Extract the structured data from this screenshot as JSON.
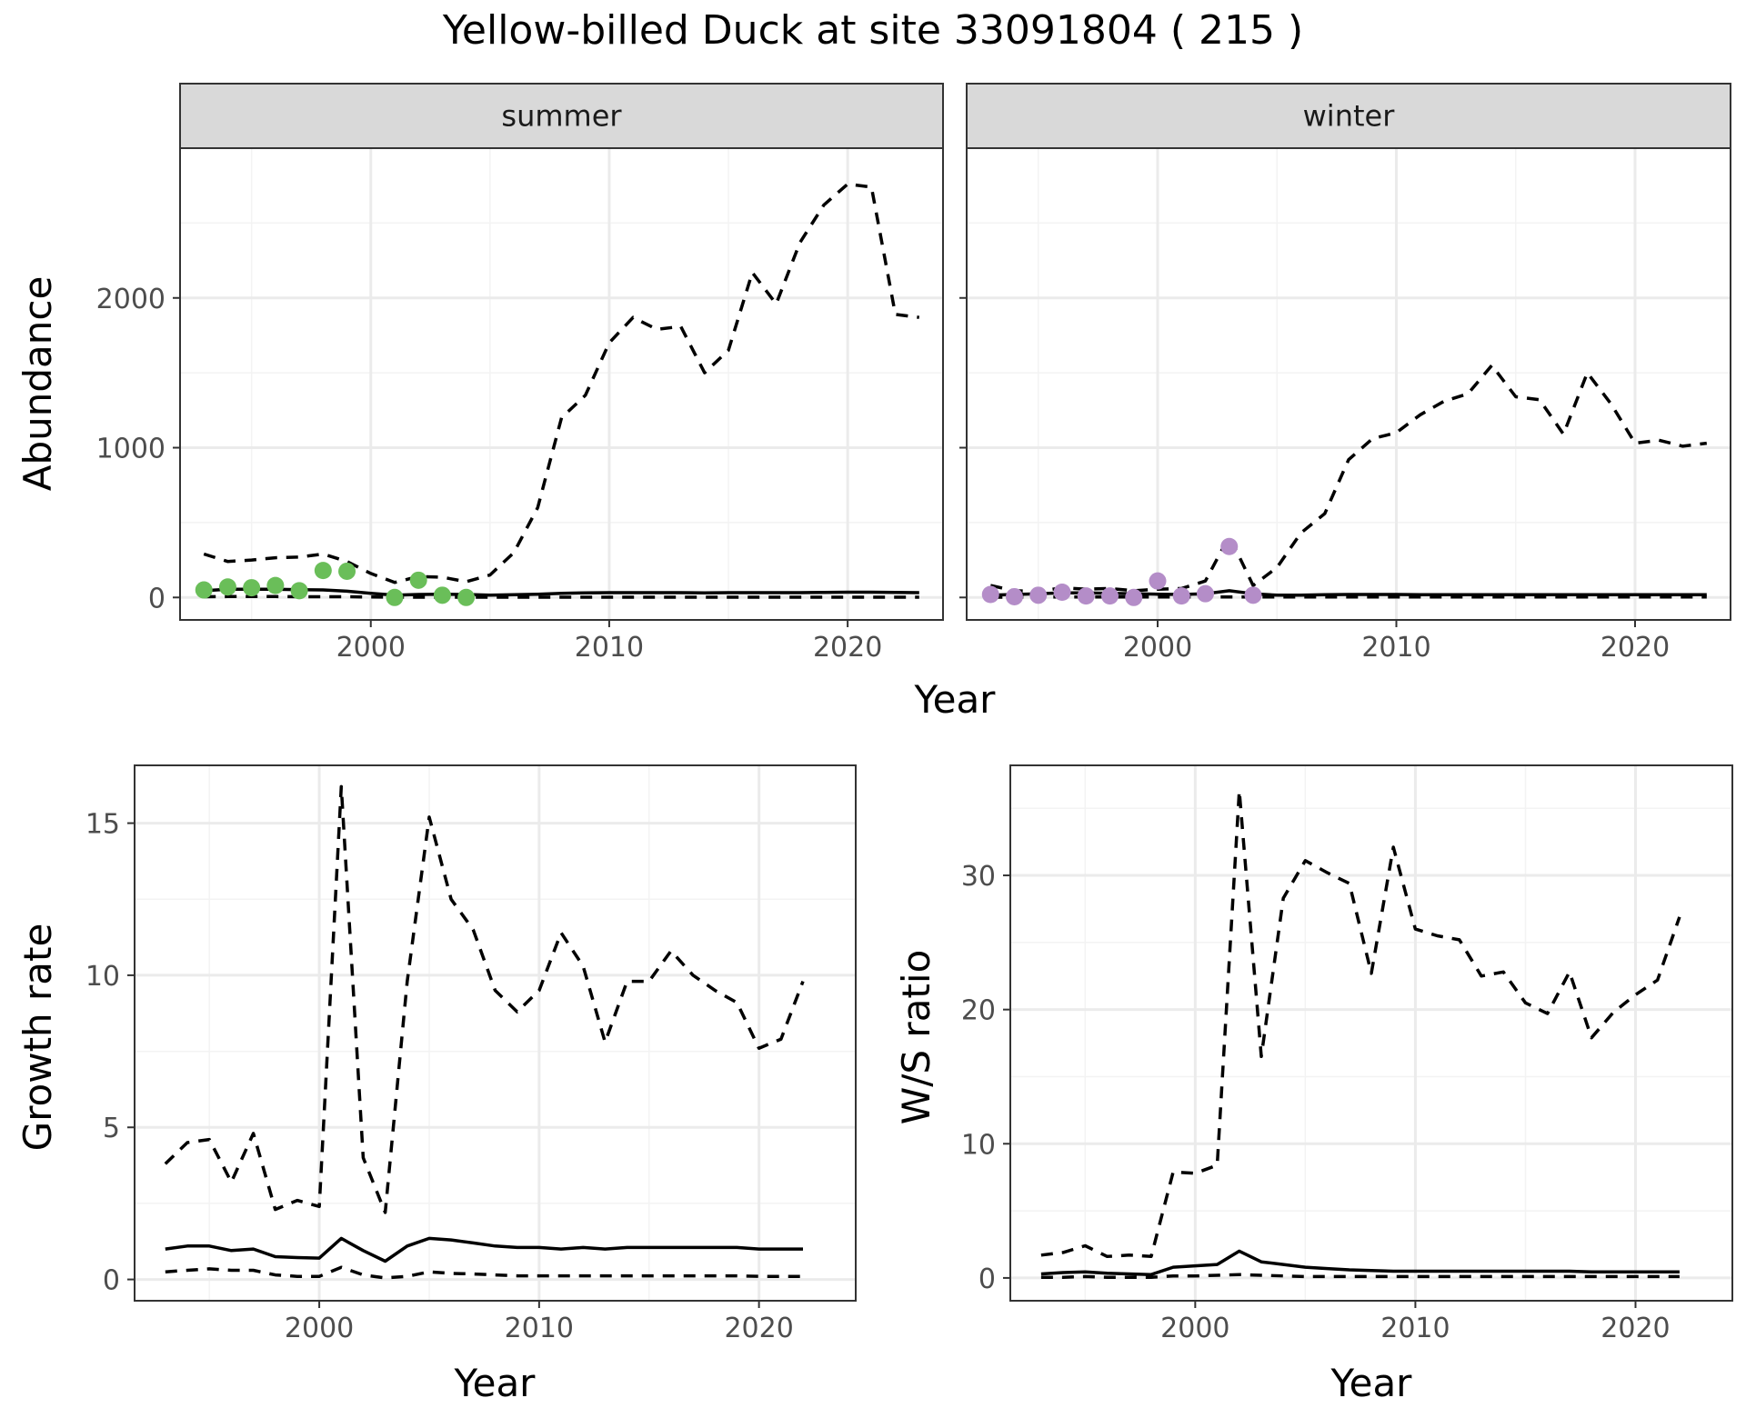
{
  "figure": {
    "title": "Yellow-billed Duck at site 33091804 ( 215 )",
    "colors": {
      "summer_points": "#6ABE59",
      "winter_points": "#B48DC8",
      "line": "#000000",
      "grid_major": "#EBEBEB",
      "grid_minor": "#F3F3F3",
      "panel_border": "#333333",
      "strip_fill": "#D9D9D9"
    }
  },
  "chart_data": [
    {
      "id": "abundance",
      "type": "line",
      "panel": "summer",
      "strip_label": "summer",
      "xlabel": "Year",
      "ylabel": "Abundance",
      "xlim": [
        1992,
        2024
      ],
      "ylim": [
        -150,
        3000
      ],
      "x_ticks": [
        2000,
        2010,
        2020
      ],
      "y_ticks": [
        0,
        1000,
        2000
      ],
      "grid": true,
      "series": [
        {
          "style": "solid",
          "x": [
            1993,
            1994,
            1995,
            1996,
            1997,
            1998,
            1999,
            2000,
            2001,
            2002,
            2003,
            2004,
            2005,
            2006,
            2007,
            2008,
            2009,
            2010,
            2011,
            2012,
            2013,
            2014,
            2015,
            2016,
            2017,
            2018,
            2019,
            2020,
            2021,
            2022,
            2023
          ],
          "values": [
            45,
            55,
            55,
            55,
            52,
            50,
            42,
            28,
            15,
            20,
            22,
            20,
            15,
            18,
            22,
            28,
            30,
            32,
            32,
            32,
            32,
            30,
            32,
            32,
            32,
            32,
            33,
            35,
            35,
            33,
            32
          ]
        },
        {
          "style": "dashed",
          "x": [
            1993,
            1994,
            1995,
            1996,
            1997,
            1998,
            1999,
            2000,
            2001,
            2002,
            2003,
            2004,
            2005,
            2006,
            2007,
            2008,
            2009,
            2010,
            2011,
            2012,
            2013,
            2014,
            2015,
            2016,
            2017,
            2018,
            2019,
            2020,
            2021,
            2022,
            2023
          ],
          "values": [
            290,
            240,
            250,
            265,
            270,
            290,
            240,
            160,
            100,
            140,
            135,
            105,
            150,
            300,
            600,
            1200,
            1350,
            1700,
            1870,
            1790,
            1810,
            1500,
            1650,
            2170,
            1960,
            2370,
            2620,
            2760,
            2740,
            1890,
            1870
          ]
        },
        {
          "style": "dashed",
          "x": [
            1993,
            1994,
            1995,
            1996,
            1997,
            1998,
            1999,
            2000,
            2001,
            2002,
            2003,
            2004,
            2005,
            2006,
            2007,
            2008,
            2009,
            2010,
            2011,
            2012,
            2013,
            2014,
            2015,
            2016,
            2017,
            2018,
            2019,
            2020,
            2021,
            2022,
            2023
          ],
          "values": [
            5,
            6,
            6,
            6,
            5,
            5,
            5,
            3,
            2,
            2,
            2,
            2,
            2,
            2,
            2,
            2,
            2,
            2,
            2,
            2,
            2,
            2,
            2,
            2,
            2,
            2,
            2,
            2,
            2,
            2,
            2
          ]
        },
        {
          "style": "points",
          "x": [
            1993,
            1994,
            1995,
            1996,
            1997,
            1998,
            1999,
            2001,
            2002,
            2003,
            2004
          ],
          "values": [
            50,
            70,
            65,
            80,
            45,
            180,
            175,
            0,
            115,
            15,
            0
          ]
        }
      ]
    },
    {
      "id": "abundance",
      "type": "line",
      "panel": "winter",
      "strip_label": "winter",
      "xlabel": "Year",
      "ylabel": "Abundance",
      "xlim": [
        1992,
        2024
      ],
      "ylim": [
        -150,
        3000
      ],
      "x_ticks": [
        2000,
        2010,
        2020
      ],
      "y_ticks": [
        0,
        1000,
        2000
      ],
      "grid": true,
      "series": [
        {
          "style": "solid",
          "x": [
            1993,
            1994,
            1995,
            1996,
            1997,
            1998,
            1999,
            2000,
            2001,
            2002,
            2003,
            2004,
            2005,
            2006,
            2007,
            2008,
            2009,
            2010,
            2011,
            2012,
            2013,
            2014,
            2015,
            2016,
            2017,
            2018,
            2019,
            2020,
            2021,
            2022,
            2023
          ],
          "values": [
            15,
            20,
            25,
            30,
            30,
            28,
            25,
            22,
            20,
            25,
            45,
            25,
            15,
            15,
            18,
            20,
            20,
            20,
            18,
            18,
            18,
            18,
            18,
            18,
            18,
            18,
            18,
            18,
            18,
            18,
            18
          ]
        },
        {
          "style": "dashed",
          "x": [
            1993,
            1994,
            1995,
            1996,
            1997,
            1998,
            1999,
            2000,
            2001,
            2002,
            2003,
            2004,
            2005,
            2006,
            2007,
            2008,
            2009,
            2010,
            2011,
            2012,
            2013,
            2014,
            2015,
            2016,
            2017,
            2018,
            2019,
            2020,
            2021,
            2022,
            2023
          ],
          "values": [
            80,
            45,
            40,
            65,
            55,
            60,
            45,
            55,
            60,
            110,
            410,
            80,
            200,
            430,
            560,
            920,
            1060,
            1100,
            1220,
            1310,
            1360,
            1550,
            1340,
            1320,
            1090,
            1500,
            1290,
            1030,
            1050,
            1010,
            1030
          ]
        },
        {
          "style": "dashed",
          "x": [
            1993,
            1994,
            1995,
            1996,
            1997,
            1998,
            1999,
            2000,
            2001,
            2002,
            2003,
            2004,
            2005,
            2006,
            2007,
            2008,
            2009,
            2010,
            2011,
            2012,
            2013,
            2014,
            2015,
            2016,
            2017,
            2018,
            2019,
            2020,
            2021,
            2022,
            2023
          ],
          "values": [
            2,
            2,
            3,
            3,
            3,
            3,
            3,
            3,
            3,
            3,
            3,
            3,
            3,
            3,
            3,
            3,
            3,
            3,
            3,
            3,
            3,
            3,
            3,
            3,
            3,
            3,
            3,
            3,
            3,
            3,
            3
          ]
        },
        {
          "style": "points",
          "x": [
            1993,
            1994,
            1995,
            1996,
            1997,
            1998,
            1999,
            2000,
            2001,
            2002,
            2003,
            2004
          ],
          "values": [
            20,
            5,
            15,
            35,
            10,
            10,
            0,
            110,
            10,
            25,
            340,
            15
          ]
        }
      ]
    },
    {
      "id": "growth",
      "type": "line",
      "xlabel": "Year",
      "ylabel": "Growth rate",
      "xlim": [
        1991.6,
        2024.4
      ],
      "ylim": [
        -0.7,
        16.9
      ],
      "x_ticks": [
        2000,
        2010,
        2020
      ],
      "y_ticks": [
        0,
        5,
        10,
        15
      ],
      "grid": true,
      "series": [
        {
          "style": "solid",
          "x": [
            1993,
            1994,
            1995,
            1996,
            1997,
            1998,
            1999,
            2000,
            2001,
            2002,
            2003,
            2004,
            2005,
            2006,
            2007,
            2008,
            2009,
            2010,
            2011,
            2012,
            2013,
            2014,
            2015,
            2016,
            2017,
            2018,
            2019,
            2020,
            2021,
            2022
          ],
          "values": [
            1.0,
            1.1,
            1.1,
            0.95,
            1.0,
            0.75,
            0.72,
            0.7,
            1.35,
            0.95,
            0.6,
            1.1,
            1.35,
            1.3,
            1.2,
            1.1,
            1.05,
            1.05,
            1.0,
            1.05,
            1.0,
            1.05,
            1.05,
            1.05,
            1.05,
            1.05,
            1.05,
            1.0,
            1.0,
            1.0
          ]
        },
        {
          "style": "dashed",
          "x": [
            1993,
            1994,
            1995,
            1996,
            1997,
            1998,
            1999,
            2000,
            2001,
            2002,
            2003,
            2004,
            2005,
            2006,
            2007,
            2008,
            2009,
            2010,
            2011,
            2012,
            2013,
            2014,
            2015,
            2016,
            2017,
            2018,
            2019,
            2020,
            2021,
            2022
          ],
          "values": [
            3.8,
            4.5,
            4.6,
            3.2,
            4.8,
            2.3,
            2.6,
            2.4,
            16.2,
            4.0,
            2.2,
            9.8,
            15.2,
            12.5,
            11.5,
            9.5,
            8.8,
            9.5,
            11.4,
            10.3,
            7.8,
            9.8,
            9.8,
            10.8,
            10.0,
            9.5,
            9.1,
            7.6,
            7.9,
            9.8
          ]
        },
        {
          "style": "dashed",
          "x": [
            1993,
            1994,
            1995,
            1996,
            1997,
            1998,
            1999,
            2000,
            2001,
            2002,
            2003,
            2004,
            2005,
            2006,
            2007,
            2008,
            2009,
            2010,
            2011,
            2012,
            2013,
            2014,
            2015,
            2016,
            2017,
            2018,
            2019,
            2020,
            2021,
            2022
          ],
          "values": [
            0.25,
            0.3,
            0.35,
            0.3,
            0.3,
            0.15,
            0.1,
            0.1,
            0.4,
            0.15,
            0.05,
            0.1,
            0.25,
            0.2,
            0.18,
            0.15,
            0.12,
            0.12,
            0.12,
            0.12,
            0.12,
            0.12,
            0.12,
            0.12,
            0.12,
            0.12,
            0.12,
            0.1,
            0.1,
            0.1
          ]
        }
      ]
    },
    {
      "id": "ws",
      "type": "line",
      "xlabel": "Year",
      "ylabel": "W/S ratio",
      "xlim": [
        1991.6,
        2024.4
      ],
      "ylim": [
        -1.7,
        38.2
      ],
      "x_ticks": [
        2000,
        2010,
        2020
      ],
      "y_ticks": [
        0,
        10,
        20,
        30
      ],
      "grid": true,
      "series": [
        {
          "style": "solid",
          "x": [
            1993,
            1994,
            1995,
            1996,
            1997,
            1998,
            1999,
            2000,
            2001,
            2002,
            2003,
            2004,
            2005,
            2006,
            2007,
            2008,
            2009,
            2010,
            2011,
            2012,
            2013,
            2014,
            2015,
            2016,
            2017,
            2018,
            2019,
            2020,
            2021,
            2022
          ],
          "values": [
            0.3,
            0.4,
            0.45,
            0.35,
            0.3,
            0.25,
            0.8,
            0.9,
            1.0,
            2.0,
            1.2,
            1.0,
            0.8,
            0.7,
            0.6,
            0.55,
            0.5,
            0.5,
            0.5,
            0.5,
            0.5,
            0.5,
            0.5,
            0.5,
            0.5,
            0.45,
            0.45,
            0.45,
            0.45,
            0.45
          ]
        },
        {
          "style": "dashed",
          "x": [
            1993,
            1994,
            1995,
            1996,
            1997,
            1998,
            1999,
            2000,
            2001,
            2002,
            2003,
            2004,
            2005,
            2006,
            2007,
            2008,
            2009,
            2010,
            2011,
            2012,
            2013,
            2014,
            2015,
            2016,
            2017,
            2018,
            2019,
            2020,
            2021,
            2022
          ],
          "values": [
            1.7,
            1.9,
            2.4,
            1.6,
            1.7,
            1.6,
            7.9,
            7.8,
            8.4,
            36.3,
            16.5,
            28.3,
            31.1,
            30.2,
            29.4,
            22.7,
            32.1,
            26.0,
            25.5,
            25.2,
            22.5,
            22.8,
            20.5,
            19.7,
            22.8,
            17.9,
            19.8,
            21.1,
            22.2,
            26.9
          ]
        },
        {
          "style": "dashed",
          "x": [
            1993,
            1994,
            1995,
            1996,
            1997,
            1998,
            1999,
            2000,
            2001,
            2002,
            2003,
            2004,
            2005,
            2006,
            2007,
            2008,
            2009,
            2010,
            2011,
            2012,
            2013,
            2014,
            2015,
            2016,
            2017,
            2018,
            2019,
            2020,
            2021,
            2022
          ],
          "values": [
            0.05,
            0.05,
            0.1,
            0.05,
            0.05,
            0.05,
            0.15,
            0.15,
            0.2,
            0.25,
            0.2,
            0.15,
            0.1,
            0.1,
            0.1,
            0.1,
            0.1,
            0.1,
            0.1,
            0.1,
            0.1,
            0.1,
            0.1,
            0.1,
            0.1,
            0.1,
            0.1,
            0.1,
            0.1,
            0.1
          ]
        }
      ]
    }
  ]
}
